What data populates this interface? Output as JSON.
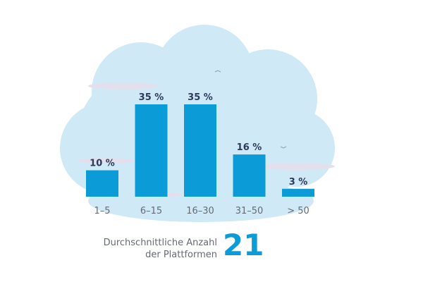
{
  "chart_data": {
    "type": "bar",
    "categories": [
      "1–5",
      "6–15",
      "16–30",
      "31–50",
      "> 50"
    ],
    "values": [
      10,
      35,
      35,
      16,
      3
    ],
    "value_labels": [
      "10 %",
      "35 %",
      "35 %",
      "16 %",
      "3 %"
    ],
    "unit": "%",
    "ylim": [
      0,
      35
    ],
    "grid": false,
    "bar_color": "#0b9bd7",
    "label_color": "#2d3a5a",
    "background_color": "#cfe9f6"
  },
  "summary": {
    "label_line1": "Durchschnittliche Anzahl",
    "label_line2": "der Plattformen",
    "value": "21"
  }
}
